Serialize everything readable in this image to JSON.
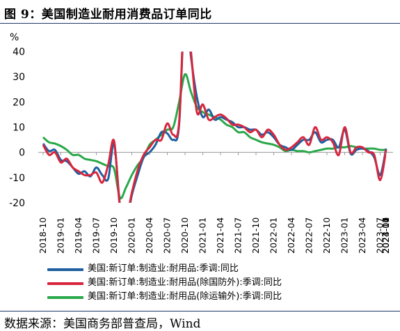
{
  "title": "图 9：美国制造业耐用消费品订单同比",
  "source": "数据来源：美国商务部普查局，Wind",
  "chart_data": {
    "type": "line",
    "ylabel": "%",
    "ylim": [
      -20,
      40
    ],
    "yticks": [
      -20,
      -10,
      0,
      10,
      20,
      30,
      40
    ],
    "xtick_labels": [
      "2018-10",
      "2019-01",
      "2019-04",
      "2019-07",
      "2019-10",
      "2020-01",
      "2020-04",
      "2020-07",
      "2020-10",
      "2021-01",
      "2021-04",
      "2021-07",
      "2021-10",
      "2022-01",
      "2022-04",
      "2022-07",
      "2022-10",
      "2023-01",
      "2023-04",
      "2023-07",
      "2023-10",
      "2024-01",
      "2024-04",
      "2024-07"
    ],
    "grid": false,
    "legend_position": "bottom",
    "series": [
      {
        "name": "美国:新订单:制造业:耐用品:季调:同比",
        "color": "#1f5fa0",
        "values": [
          3.5,
          0.5,
          1.0,
          -3.0,
          -3.5,
          -6.0,
          -8.5,
          -7.5,
          -9.5,
          -6.0,
          -9.0,
          -10.5,
          3.5,
          -21.0,
          -28.0,
          -17.0,
          -9.0,
          -2.0,
          0.0,
          3.0,
          8.0,
          7.5,
          5.0,
          11.0,
          60.0,
          38.0,
          22.0,
          14.0,
          17.0,
          13.0,
          14.0,
          13.0,
          12.0,
          10.0,
          10.0,
          9.0,
          9.0,
          7.0,
          8.0,
          6.0,
          3.0,
          2.0,
          1.0,
          3.0,
          5.0,
          5.0,
          8.0,
          4.0,
          5.0,
          5.0,
          2.0,
          9.0,
          -0.5,
          1.0,
          1.5,
          0.5,
          -2.0,
          -9.0,
          1.5
        ]
      },
      {
        "name": "美国:新订单:制造业:耐用品(除国防外):季调:同比",
        "color": "#d7263d",
        "values": [
          3.0,
          -1.0,
          0.0,
          -4.0,
          -2.5,
          -6.0,
          -7.5,
          -9.0,
          -9.0,
          -8.0,
          -12.0,
          -5.0,
          4.5,
          -22.0,
          -27.0,
          -16.0,
          -7.0,
          -1.0,
          2.0,
          5.0,
          5.0,
          11.5,
          7.0,
          12.0,
          62.0,
          40.0,
          16.0,
          19.0,
          13.0,
          14.0,
          15.0,
          13.5,
          11.0,
          11.0,
          10.0,
          8.0,
          9.0,
          6.0,
          9.0,
          7.0,
          3.0,
          1.0,
          2.0,
          4.0,
          6.0,
          3.0,
          10.0,
          5.0,
          6.0,
          4.0,
          -1.0,
          10.0,
          0.0,
          2.0,
          2.0,
          0.0,
          -1.0,
          -11.0,
          1.0
        ]
      },
      {
        "name": "美国:新订单:制造业:耐用品(除运输外):季调:同比",
        "color": "#2aa84a",
        "values": [
          6.0,
          4.0,
          3.5,
          2.5,
          1.0,
          -1.0,
          -1.0,
          -2.5,
          -3.0,
          -3.5,
          -4.5,
          -5.5,
          -6.5,
          -18.0,
          -14.0,
          -9.0,
          -5.0,
          -2.0,
          3.0,
          5.0,
          7.0,
          9.0,
          10.0,
          20.0,
          31.0,
          24.0,
          18.0,
          16.0,
          15.0,
          14.0,
          13.0,
          11.0,
          10.0,
          8.0,
          8.0,
          6.0,
          5.0,
          4.0,
          3.5,
          3.0,
          2.0,
          0.5,
          1.0,
          0.5,
          0.5,
          0.0,
          0.5,
          1.0,
          1.5,
          1.5,
          2.0,
          2.0,
          2.5,
          2.0,
          1.5,
          1.5,
          1.5,
          1.0,
          1.0
        ]
      }
    ]
  }
}
